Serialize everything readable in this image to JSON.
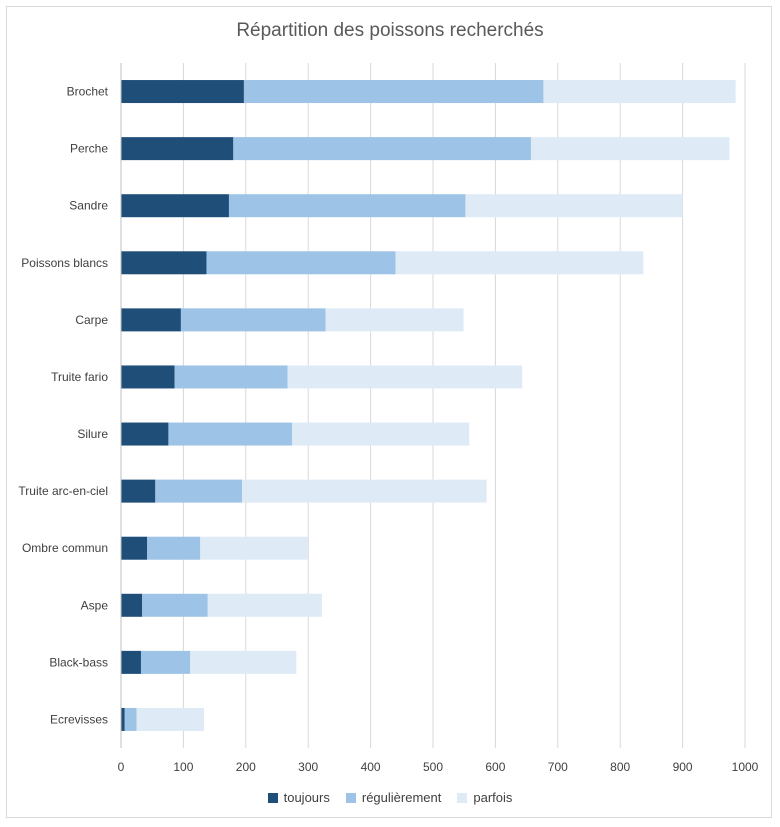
{
  "chart_data": {
    "type": "bar",
    "orientation": "horizontal",
    "stacked": true,
    "title": "Répartition des poissons recherchés",
    "xlabel": "",
    "ylabel": "",
    "xlim": [
      0,
      1000
    ],
    "xticks": [
      "0",
      "100",
      "200",
      "300",
      "400",
      "500",
      "600",
      "700",
      "800",
      "900",
      "1000"
    ],
    "grid": true,
    "legend_position": "bottom",
    "categories": [
      "Brochet",
      "Perche",
      "Sandre",
      "Poissons blancs",
      "Carpe",
      "Truite fario",
      "Silure",
      "Truite arc-en-ciel",
      "Ombre commun",
      "Aspe",
      "Black-bass",
      "Ecrevisses"
    ],
    "series": [
      {
        "name": "toujours",
        "color": "#1f4e79",
        "values": [
          197,
          180,
          173,
          137,
          96,
          86,
          76,
          55,
          42,
          34,
          32,
          6
        ]
      },
      {
        "name": "régulièrement",
        "color": "#9dc3e6",
        "values": [
          480,
          477,
          379,
          303,
          232,
          181,
          198,
          139,
          85,
          105,
          79,
          19
        ]
      },
      {
        "name": "parfois",
        "color": "#deebf7",
        "values": [
          308,
          318,
          348,
          397,
          221,
          376,
          284,
          392,
          172,
          183,
          170,
          108
        ]
      }
    ]
  }
}
